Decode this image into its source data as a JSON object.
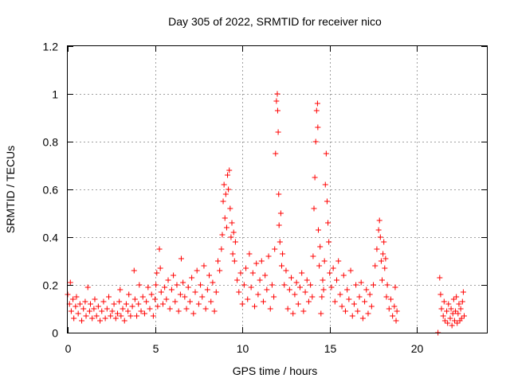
{
  "chart_data": {
    "type": "scatter",
    "title": "Day 305 of 2022, SRMTID for receiver nico",
    "xlabel": "GPS time / hours",
    "ylabel": "SRMTID / TECUs",
    "xlim": [
      0,
      24
    ],
    "ylim": [
      0,
      1.2
    ],
    "xticks": [
      0,
      5,
      10,
      15,
      20
    ],
    "xtick_labels": [
      "0",
      "5",
      "10",
      "15",
      "20"
    ],
    "yticks": [
      0,
      0.2,
      0.4,
      0.6,
      0.8,
      1,
      1.2
    ],
    "ytick_labels": [
      "0",
      "0.2",
      "0.4",
      "0.6",
      "0.8",
      "1",
      "1.2"
    ],
    "grid": true,
    "marker": "+",
    "color": "#ff0000",
    "series": [
      {
        "name": "SRMTID",
        "points": [
          [
            0.0,
            0.16
          ],
          [
            0.1,
            0.12
          ],
          [
            0.15,
            0.21
          ],
          [
            0.2,
            0.09
          ],
          [
            0.3,
            0.14
          ],
          [
            0.35,
            0.06
          ],
          [
            0.45,
            0.11
          ],
          [
            0.5,
            0.15
          ],
          [
            0.6,
            0.08
          ],
          [
            0.7,
            0.12
          ],
          [
            0.8,
            0.05
          ],
          [
            0.9,
            0.1
          ],
          [
            1.0,
            0.13
          ],
          [
            1.05,
            0.07
          ],
          [
            1.15,
            0.19
          ],
          [
            1.25,
            0.09
          ],
          [
            1.3,
            0.12
          ],
          [
            1.4,
            0.06
          ],
          [
            1.5,
            0.1
          ],
          [
            1.55,
            0.14
          ],
          [
            1.65,
            0.07
          ],
          [
            1.75,
            0.11
          ],
          [
            1.85,
            0.05
          ],
          [
            1.95,
            0.09
          ],
          [
            2.05,
            0.13
          ],
          [
            2.15,
            0.06
          ],
          [
            2.25,
            0.1
          ],
          [
            2.35,
            0.15
          ],
          [
            2.45,
            0.07
          ],
          [
            2.55,
            0.09
          ],
          [
            2.65,
            0.12
          ],
          [
            2.75,
            0.06
          ],
          [
            2.85,
            0.08
          ],
          [
            2.95,
            0.13
          ],
          [
            3.0,
            0.18
          ],
          [
            3.05,
            0.07
          ],
          [
            3.15,
            0.1
          ],
          [
            3.25,
            0.05
          ],
          [
            3.35,
            0.12
          ],
          [
            3.45,
            0.09
          ],
          [
            3.5,
            0.16
          ],
          [
            3.6,
            0.07
          ],
          [
            3.7,
            0.11
          ],
          [
            3.8,
            0.26
          ],
          [
            3.85,
            0.14
          ],
          [
            3.95,
            0.07
          ],
          [
            4.05,
            0.12
          ],
          [
            4.1,
            0.2
          ],
          [
            4.2,
            0.09
          ],
          [
            4.3,
            0.15
          ],
          [
            4.4,
            0.08
          ],
          [
            4.5,
            0.13
          ],
          [
            4.6,
            0.19
          ],
          [
            4.7,
            0.1
          ],
          [
            4.8,
            0.16
          ],
          [
            4.9,
            0.07
          ],
          [
            5.0,
            0.14
          ],
          [
            5.05,
            0.2
          ],
          [
            5.1,
            0.25
          ],
          [
            5.15,
            0.11
          ],
          [
            5.25,
            0.35
          ],
          [
            5.3,
            0.27
          ],
          [
            5.35,
            0.17
          ],
          [
            5.45,
            0.12
          ],
          [
            5.55,
            0.19
          ],
          [
            5.65,
            0.14
          ],
          [
            5.75,
            0.22
          ],
          [
            5.85,
            0.1
          ],
          [
            5.95,
            0.18
          ],
          [
            6.05,
            0.24
          ],
          [
            6.15,
            0.13
          ],
          [
            6.25,
            0.2
          ],
          [
            6.35,
            0.09
          ],
          [
            6.45,
            0.16
          ],
          [
            6.5,
            0.31
          ],
          [
            6.6,
            0.21
          ],
          [
            6.7,
            0.15
          ],
          [
            6.8,
            0.1
          ],
          [
            6.9,
            0.19
          ],
          [
            7.0,
            0.13
          ],
          [
            7.1,
            0.23
          ],
          [
            7.2,
            0.08
          ],
          [
            7.3,
            0.17
          ],
          [
            7.4,
            0.26
          ],
          [
            7.5,
            0.12
          ],
          [
            7.6,
            0.2
          ],
          [
            7.7,
            0.15
          ],
          [
            7.8,
            0.28
          ],
          [
            7.9,
            0.1
          ],
          [
            8.0,
            0.18
          ],
          [
            8.1,
            0.24
          ],
          [
            8.2,
            0.13
          ],
          [
            8.3,
            0.21
          ],
          [
            8.4,
            0.09
          ],
          [
            8.5,
            0.17
          ],
          [
            8.6,
            0.3
          ],
          [
            8.7,
            0.26
          ],
          [
            8.8,
            0.35
          ],
          [
            8.85,
            0.41
          ],
          [
            8.9,
            0.55
          ],
          [
            8.95,
            0.62
          ],
          [
            9.0,
            0.48
          ],
          [
            9.05,
            0.58
          ],
          [
            9.1,
            0.44
          ],
          [
            9.15,
            0.66
          ],
          [
            9.2,
            0.6
          ],
          [
            9.25,
            0.68
          ],
          [
            9.3,
            0.52
          ],
          [
            9.35,
            0.4
          ],
          [
            9.4,
            0.46
          ],
          [
            9.45,
            0.33
          ],
          [
            9.5,
            0.42
          ],
          [
            9.55,
            0.3
          ],
          [
            9.6,
            0.38
          ],
          [
            9.7,
            0.22
          ],
          [
            9.8,
            0.17
          ],
          [
            9.9,
            0.25
          ],
          [
            10.0,
            0.12
          ],
          [
            10.1,
            0.2
          ],
          [
            10.2,
            0.27
          ],
          [
            10.3,
            0.14
          ],
          [
            10.4,
            0.33
          ],
          [
            10.5,
            0.19
          ],
          [
            10.6,
            0.25
          ],
          [
            10.7,
            0.11
          ],
          [
            10.8,
            0.29
          ],
          [
            10.9,
            0.16
          ],
          [
            11.0,
            0.22
          ],
          [
            11.1,
            0.3
          ],
          [
            11.2,
            0.13
          ],
          [
            11.3,
            0.24
          ],
          [
            11.4,
            0.18
          ],
          [
            11.5,
            0.32
          ],
          [
            11.6,
            0.1
          ],
          [
            11.7,
            0.2
          ],
          [
            11.8,
            0.15
          ],
          [
            11.85,
            0.35
          ],
          [
            11.9,
            0.75
          ],
          [
            11.95,
            0.97
          ],
          [
            12.0,
            1.0
          ],
          [
            12.02,
            0.93
          ],
          [
            12.05,
            0.84
          ],
          [
            12.08,
            0.58
          ],
          [
            12.1,
            0.45
          ],
          [
            12.15,
            0.38
          ],
          [
            12.2,
            0.5
          ],
          [
            12.25,
            0.28
          ],
          [
            12.3,
            0.33
          ],
          [
            12.4,
            0.2
          ],
          [
            12.5,
            0.26
          ],
          [
            12.6,
            0.1
          ],
          [
            12.7,
            0.18
          ],
          [
            12.8,
            0.23
          ],
          [
            12.9,
            0.08
          ],
          [
            13.0,
            0.16
          ],
          [
            13.1,
            0.21
          ],
          [
            13.2,
            0.12
          ],
          [
            13.3,
            0.19
          ],
          [
            13.4,
            0.25
          ],
          [
            13.5,
            0.09
          ],
          [
            13.6,
            0.17
          ],
          [
            13.7,
            0.22
          ],
          [
            13.8,
            0.13
          ],
          [
            13.9,
            0.2
          ],
          [
            14.0,
            0.15
          ],
          [
            14.05,
            0.32
          ],
          [
            14.1,
            0.52
          ],
          [
            14.15,
            0.65
          ],
          [
            14.2,
            0.8
          ],
          [
            14.25,
            0.93
          ],
          [
            14.3,
            0.96
          ],
          [
            14.32,
            0.86
          ],
          [
            14.35,
            0.43
          ],
          [
            14.4,
            0.28
          ],
          [
            14.45,
            0.36
          ],
          [
            14.5,
            0.08
          ],
          [
            14.55,
            0.15
          ],
          [
            14.6,
            0.22
          ],
          [
            14.65,
            0.18
          ],
          [
            14.7,
            0.3
          ],
          [
            14.75,
            0.62
          ],
          [
            14.8,
            0.75
          ],
          [
            14.85,
            0.55
          ],
          [
            14.9,
            0.46
          ],
          [
            14.95,
            0.38
          ],
          [
            15.0,
            0.25
          ],
          [
            15.1,
            0.19
          ],
          [
            15.2,
            0.27
          ],
          [
            15.3,
            0.13
          ],
          [
            15.4,
            0.22
          ],
          [
            15.5,
            0.3
          ],
          [
            15.6,
            0.16
          ],
          [
            15.7,
            0.11
          ],
          [
            15.8,
            0.24
          ],
          [
            15.9,
            0.09
          ],
          [
            16.0,
            0.18
          ],
          [
            16.1,
            0.14
          ],
          [
            16.2,
            0.26
          ],
          [
            16.3,
            0.07
          ],
          [
            16.4,
            0.12
          ],
          [
            16.5,
            0.2
          ],
          [
            16.6,
            0.09
          ],
          [
            16.7,
            0.15
          ],
          [
            16.8,
            0.21
          ],
          [
            16.9,
            0.06
          ],
          [
            17.0,
            0.13
          ],
          [
            17.1,
            0.18
          ],
          [
            17.2,
            0.08
          ],
          [
            17.3,
            0.16
          ],
          [
            17.4,
            0.11
          ],
          [
            17.5,
            0.2
          ],
          [
            17.6,
            0.28
          ],
          [
            17.7,
            0.35
          ],
          [
            17.8,
            0.43
          ],
          [
            17.85,
            0.47
          ],
          [
            17.9,
            0.4
          ],
          [
            17.95,
            0.3
          ],
          [
            18.0,
            0.22
          ],
          [
            18.05,
            0.33
          ],
          [
            18.1,
            0.38
          ],
          [
            18.15,
            0.27
          ],
          [
            18.2,
            0.31
          ],
          [
            18.25,
            0.15
          ],
          [
            18.3,
            0.2
          ],
          [
            18.4,
            0.1
          ],
          [
            18.5,
            0.14
          ],
          [
            18.6,
            0.07
          ],
          [
            18.7,
            0.11
          ],
          [
            18.75,
            0.19
          ],
          [
            18.8,
            0.05
          ],
          [
            18.85,
            0.09
          ],
          [
            21.2,
            0.0
          ],
          [
            21.3,
            0.23
          ],
          [
            21.35,
            0.16
          ],
          [
            21.4,
            0.1
          ],
          [
            21.5,
            0.07
          ],
          [
            21.55,
            0.13
          ],
          [
            21.6,
            0.05
          ],
          [
            21.7,
            0.09
          ],
          [
            21.75,
            0.04
          ],
          [
            21.8,
            0.12
          ],
          [
            21.9,
            0.06
          ],
          [
            21.95,
            0.1
          ],
          [
            22.0,
            0.03
          ],
          [
            22.05,
            0.08
          ],
          [
            22.1,
            0.14
          ],
          [
            22.15,
            0.05
          ],
          [
            22.2,
            0.09
          ],
          [
            22.25,
            0.15
          ],
          [
            22.3,
            0.04
          ],
          [
            22.35,
            0.08
          ],
          [
            22.4,
            0.12
          ],
          [
            22.45,
            0.05
          ],
          [
            22.5,
            0.1
          ],
          [
            22.55,
            0.06
          ],
          [
            22.6,
            0.13
          ],
          [
            22.65,
            0.17
          ],
          [
            22.7,
            0.07
          ]
        ]
      }
    ]
  }
}
